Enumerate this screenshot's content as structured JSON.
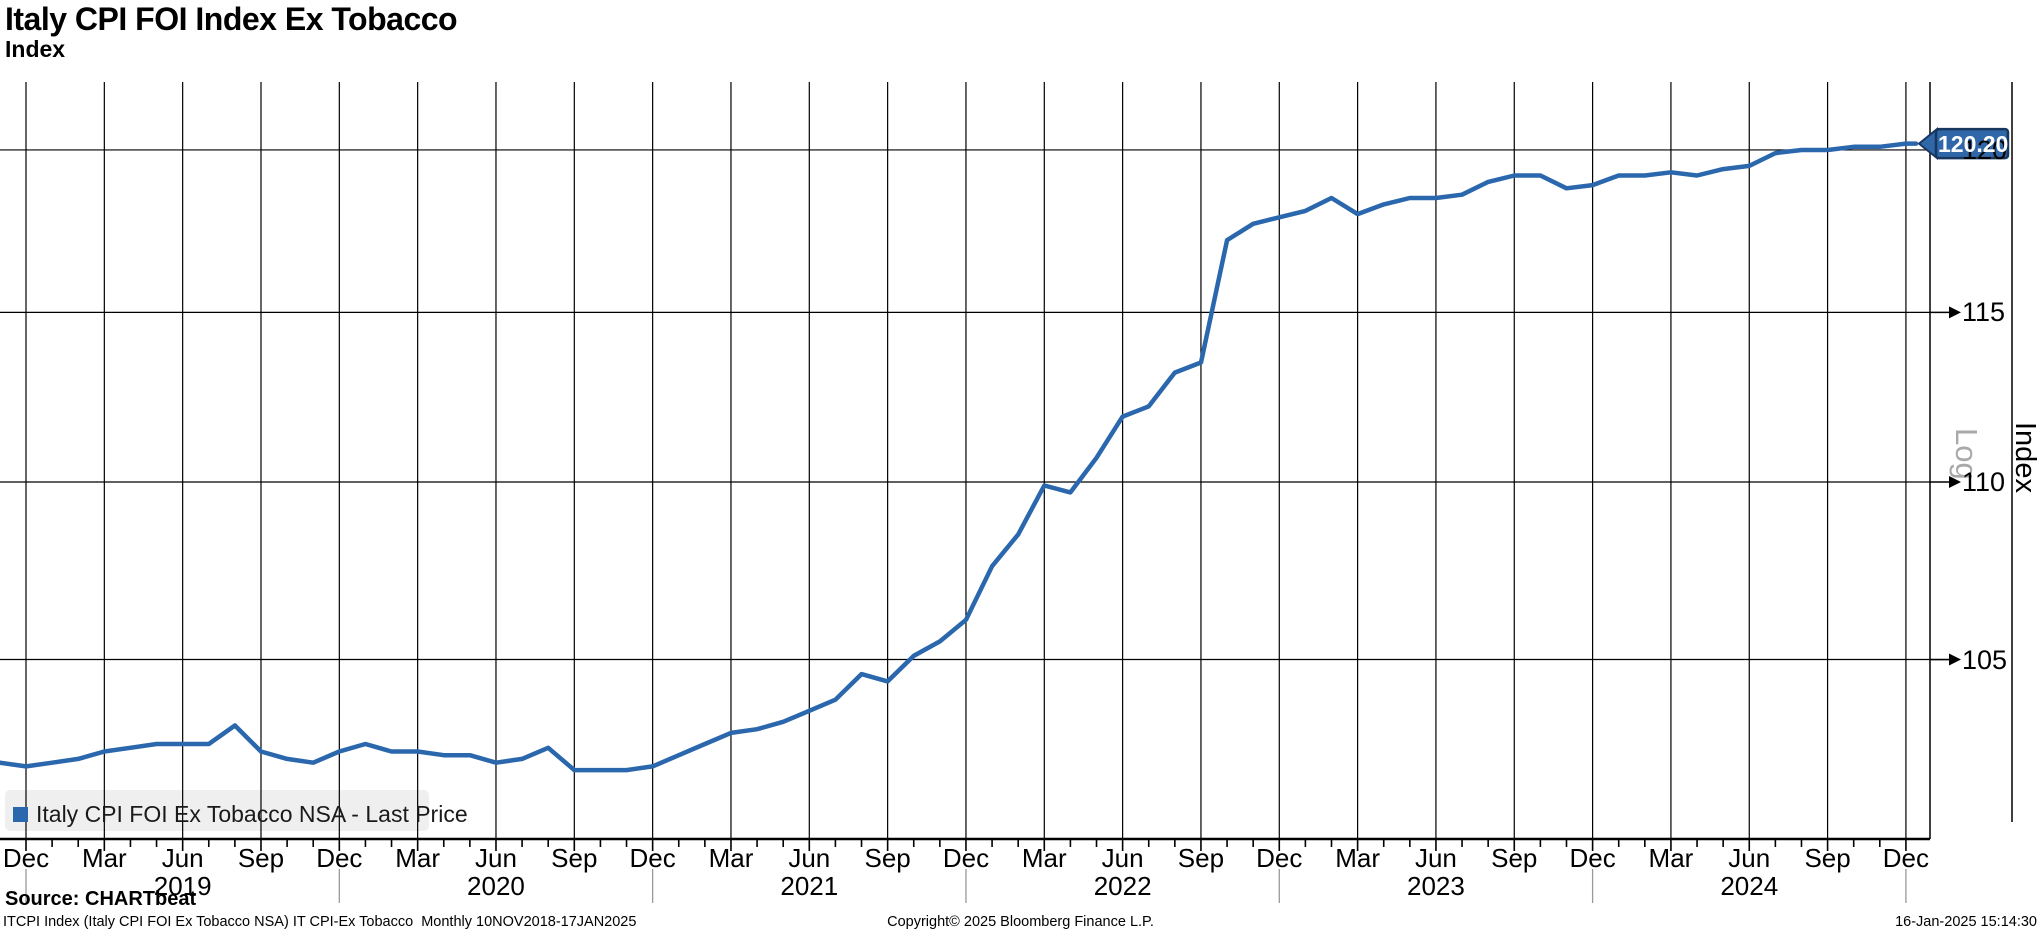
{
  "title": "Italy CPI FOI Index Ex Tobacco",
  "subtitle": "Index",
  "legend": {
    "swatch_color": "#2a67ad",
    "label": "Italy CPI FOI Ex Tobacco NSA - Last Price"
  },
  "last_price": {
    "value": "120.20",
    "badge_fill": "#2f67a8",
    "badge_border": "#17375f"
  },
  "axis": {
    "y_scale_label": "Log",
    "y_axis_title": "Index",
    "y_ticks": [
      105,
      110,
      115,
      120
    ],
    "x_quarter_labels": [
      "Dec",
      "Mar",
      "Jun",
      "Sep",
      "Dec",
      "Mar",
      "Jun",
      "Sep",
      "Dec",
      "Mar",
      "Jun",
      "Sep",
      "Dec",
      "Mar",
      "Jun",
      "Sep",
      "Dec",
      "Mar",
      "Jun",
      "Sep",
      "Dec",
      "Mar",
      "Jun",
      "Sep",
      "Dec"
    ],
    "x_year_labels": [
      "2019",
      "2020",
      "2021",
      "2022",
      "2023",
      "2024"
    ]
  },
  "footer": {
    "source": "Source: CHARTbeat",
    "note": "ITCPI Index (Italy CPI FOI Ex Tobacco NSA) IT CPI-Ex Tobacco  Monthly 10NOV2018-17JAN2025",
    "copyright": "Copyright© 2025 Bloomberg Finance L.P.",
    "timestamp": "16-Jan-2025 15:14:30"
  },
  "chart_data": {
    "type": "line",
    "title": "Italy CPI FOI Index Ex Tobacco",
    "xlabel": "",
    "ylabel": "Index",
    "y_scale": "log",
    "ylim": [
      100.2,
      121.9
    ],
    "y_ticks": [
      105,
      110,
      115,
      120
    ],
    "grid": "on",
    "legend_position": "bottom-left",
    "frequency": "monthly",
    "x_start": "2018-11",
    "x": [
      "2018-11",
      "2018-12",
      "2019-01",
      "2019-02",
      "2019-03",
      "2019-04",
      "2019-05",
      "2019-06",
      "2019-07",
      "2019-08",
      "2019-09",
      "2019-10",
      "2019-11",
      "2019-12",
      "2020-01",
      "2020-02",
      "2020-03",
      "2020-04",
      "2020-05",
      "2020-06",
      "2020-07",
      "2020-08",
      "2020-09",
      "2020-10",
      "2020-11",
      "2020-12",
      "2021-01",
      "2021-02",
      "2021-03",
      "2021-04",
      "2021-05",
      "2021-06",
      "2021-07",
      "2021-08",
      "2021-09",
      "2021-10",
      "2021-11",
      "2021-12",
      "2022-01",
      "2022-02",
      "2022-03",
      "2022-04",
      "2022-05",
      "2022-06",
      "2022-07",
      "2022-08",
      "2022-09",
      "2022-10",
      "2022-11",
      "2022-12",
      "2023-01",
      "2023-02",
      "2023-03",
      "2023-04",
      "2023-05",
      "2023-06",
      "2023-07",
      "2023-08",
      "2023-09",
      "2023-10",
      "2023-11",
      "2023-12",
      "2024-01",
      "2024-02",
      "2024-03",
      "2024-04",
      "2024-05",
      "2024-06",
      "2024-07",
      "2024-08",
      "2024-09",
      "2024-10",
      "2024-11",
      "2024-12"
    ],
    "series": [
      {
        "name": "Italy CPI FOI Ex Tobacco NSA - Last Price",
        "color": "#2a67ad",
        "values": [
          102.2,
          102.1,
          102.2,
          102.3,
          102.5,
          102.6,
          102.7,
          102.7,
          102.7,
          103.2,
          102.5,
          102.3,
          102.2,
          102.5,
          102.7,
          102.5,
          102.5,
          102.4,
          102.4,
          102.2,
          102.3,
          102.6,
          102.0,
          102.0,
          102.0,
          102.1,
          102.4,
          102.7,
          103.0,
          103.1,
          103.3,
          103.6,
          103.9,
          104.6,
          104.4,
          105.1,
          105.5,
          106.1,
          107.6,
          108.5,
          109.9,
          109.7,
          110.7,
          111.9,
          112.2,
          113.2,
          113.5,
          117.2,
          117.7,
          117.9,
          118.1,
          118.5,
          118.0,
          118.3,
          118.5,
          118.5,
          118.6,
          119.0,
          119.2,
          119.2,
          118.8,
          118.9,
          119.2,
          119.2,
          119.3,
          119.2,
          119.4,
          119.5,
          119.9,
          120.0,
          120.0,
          120.1,
          120.1,
          120.2
        ]
      }
    ],
    "last_price": 120.2,
    "last_price_date": "2024-12"
  }
}
